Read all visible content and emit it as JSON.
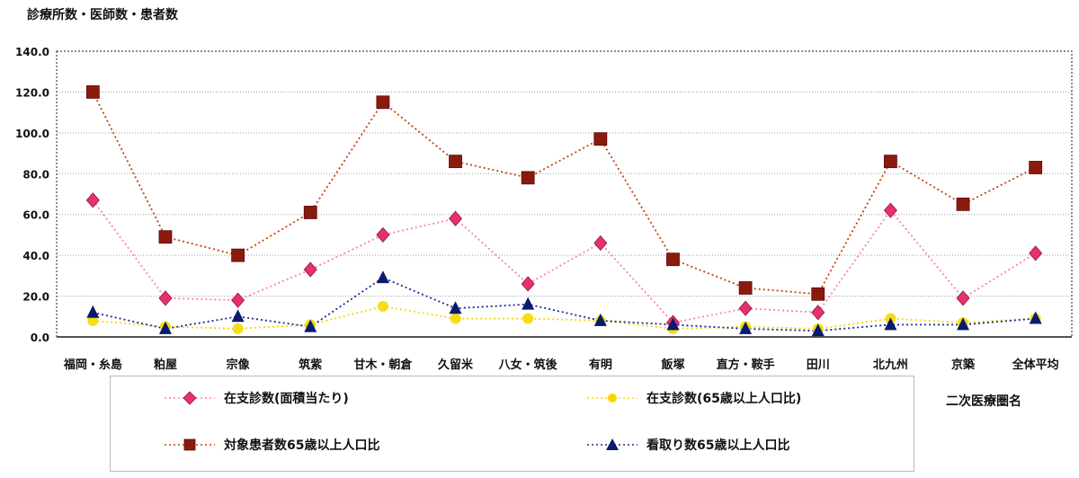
{
  "chart_data": {
    "type": "line",
    "title": "",
    "ylabel": "診療所数・医師数・患者数",
    "xlabel": "二次医療圏名",
    "ylim": [
      0,
      140
    ],
    "yticks": [
      "0.0",
      "20.0",
      "40.0",
      "60.0",
      "80.0",
      "100.0",
      "120.0",
      "140.0"
    ],
    "categories": [
      "福岡・糸島",
      "粕屋",
      "宗像",
      "筑紫",
      "甘木・朝倉",
      "久留米",
      "八女・筑後",
      "有明",
      "飯塚",
      "直方・鞍手",
      "田川",
      "北九州",
      "京築",
      "全体平均"
    ],
    "series": [
      {
        "name": "在支診数(面積当たり)",
        "color": "#ff7fb0",
        "marker": "diamond",
        "values": [
          67,
          19,
          18,
          33,
          50,
          58,
          26,
          46,
          7,
          14,
          12,
          62,
          19,
          41
        ]
      },
      {
        "name": "在支診数(65歳以上人口比)",
        "color": "#f5d800",
        "marker": "circle",
        "values": [
          8,
          5,
          4,
          6,
          15,
          9,
          9,
          8,
          4,
          5,
          4,
          9,
          7,
          9
        ]
      },
      {
        "name": "対象患者数65歳以上人口比",
        "color": "#c4420a",
        "marker": "square",
        "values": [
          120,
          49,
          40,
          61,
          115,
          86,
          78,
          97,
          38,
          24,
          21,
          86,
          65,
          83
        ]
      },
      {
        "name": "看取り数65歳以上人口比",
        "color": "#1a2a8c",
        "marker": "triangle",
        "values": [
          12,
          4,
          10,
          5,
          29,
          14,
          16,
          8,
          6,
          4,
          3,
          6,
          6,
          9
        ]
      }
    ],
    "grid": true,
    "legend_position": "bottom"
  }
}
